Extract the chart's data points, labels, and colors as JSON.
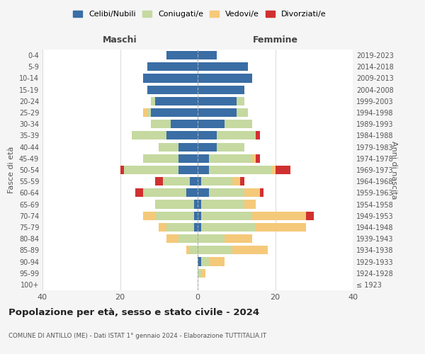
{
  "age_groups": [
    "100+",
    "95-99",
    "90-94",
    "85-89",
    "80-84",
    "75-79",
    "70-74",
    "65-69",
    "60-64",
    "55-59",
    "50-54",
    "45-49",
    "40-44",
    "35-39",
    "30-34",
    "25-29",
    "20-24",
    "15-19",
    "10-14",
    "5-9",
    "0-4"
  ],
  "birth_years": [
    "≤ 1923",
    "1924-1928",
    "1929-1933",
    "1934-1938",
    "1939-1943",
    "1944-1948",
    "1949-1953",
    "1954-1958",
    "1959-1963",
    "1964-1968",
    "1969-1973",
    "1974-1978",
    "1979-1983",
    "1984-1988",
    "1989-1993",
    "1994-1998",
    "1999-2003",
    "2004-2008",
    "2009-2013",
    "2014-2018",
    "2019-2023"
  ],
  "colors": {
    "celibi": "#3a6ea5",
    "coniugati": "#c5d9a0",
    "vedovi": "#f5c97a",
    "divorziati": "#d13030"
  },
  "maschi": {
    "celibi": [
      0,
      0,
      0,
      0,
      0,
      1,
      1,
      1,
      3,
      2,
      5,
      5,
      5,
      8,
      7,
      12,
      11,
      13,
      14,
      13,
      8
    ],
    "coniugati": [
      0,
      0,
      0,
      2,
      5,
      7,
      10,
      10,
      11,
      7,
      14,
      9,
      5,
      9,
      5,
      1,
      1,
      0,
      0,
      0,
      0
    ],
    "vedovi": [
      0,
      0,
      0,
      1,
      3,
      2,
      3,
      0,
      0,
      0,
      0,
      0,
      0,
      0,
      0,
      1,
      0,
      0,
      0,
      0,
      0
    ],
    "divorziati": [
      0,
      0,
      0,
      0,
      0,
      0,
      0,
      0,
      2,
      2,
      1,
      0,
      0,
      0,
      0,
      0,
      0,
      0,
      0,
      0,
      0
    ]
  },
  "femmine": {
    "nubili": [
      0,
      0,
      1,
      0,
      0,
      1,
      1,
      1,
      3,
      1,
      3,
      3,
      5,
      5,
      7,
      10,
      10,
      12,
      14,
      13,
      5
    ],
    "coniugate": [
      0,
      1,
      2,
      9,
      7,
      14,
      13,
      11,
      9,
      8,
      16,
      11,
      7,
      10,
      7,
      3,
      2,
      0,
      0,
      0,
      0
    ],
    "vedove": [
      0,
      1,
      4,
      9,
      7,
      13,
      14,
      3,
      4,
      2,
      1,
      1,
      0,
      0,
      0,
      0,
      0,
      0,
      0,
      0,
      0
    ],
    "divorziate": [
      0,
      0,
      0,
      0,
      0,
      0,
      2,
      0,
      1,
      1,
      4,
      1,
      0,
      1,
      0,
      0,
      0,
      0,
      0,
      0,
      0
    ]
  },
  "xlim": 40,
  "title": "Popolazione per età, sesso e stato civile - 2024",
  "subtitle": "COMUNE DI ANTILLO (ME) - Dati ISTAT 1° gennaio 2024 - Elaborazione TUTTITALIA.IT",
  "xlabel_left": "Maschi",
  "xlabel_right": "Femmine",
  "ylabel_left": "Fasce di età",
  "ylabel_right": "Anni di nascita",
  "bg_color": "#f5f5f5",
  "plot_bg": "#ffffff"
}
